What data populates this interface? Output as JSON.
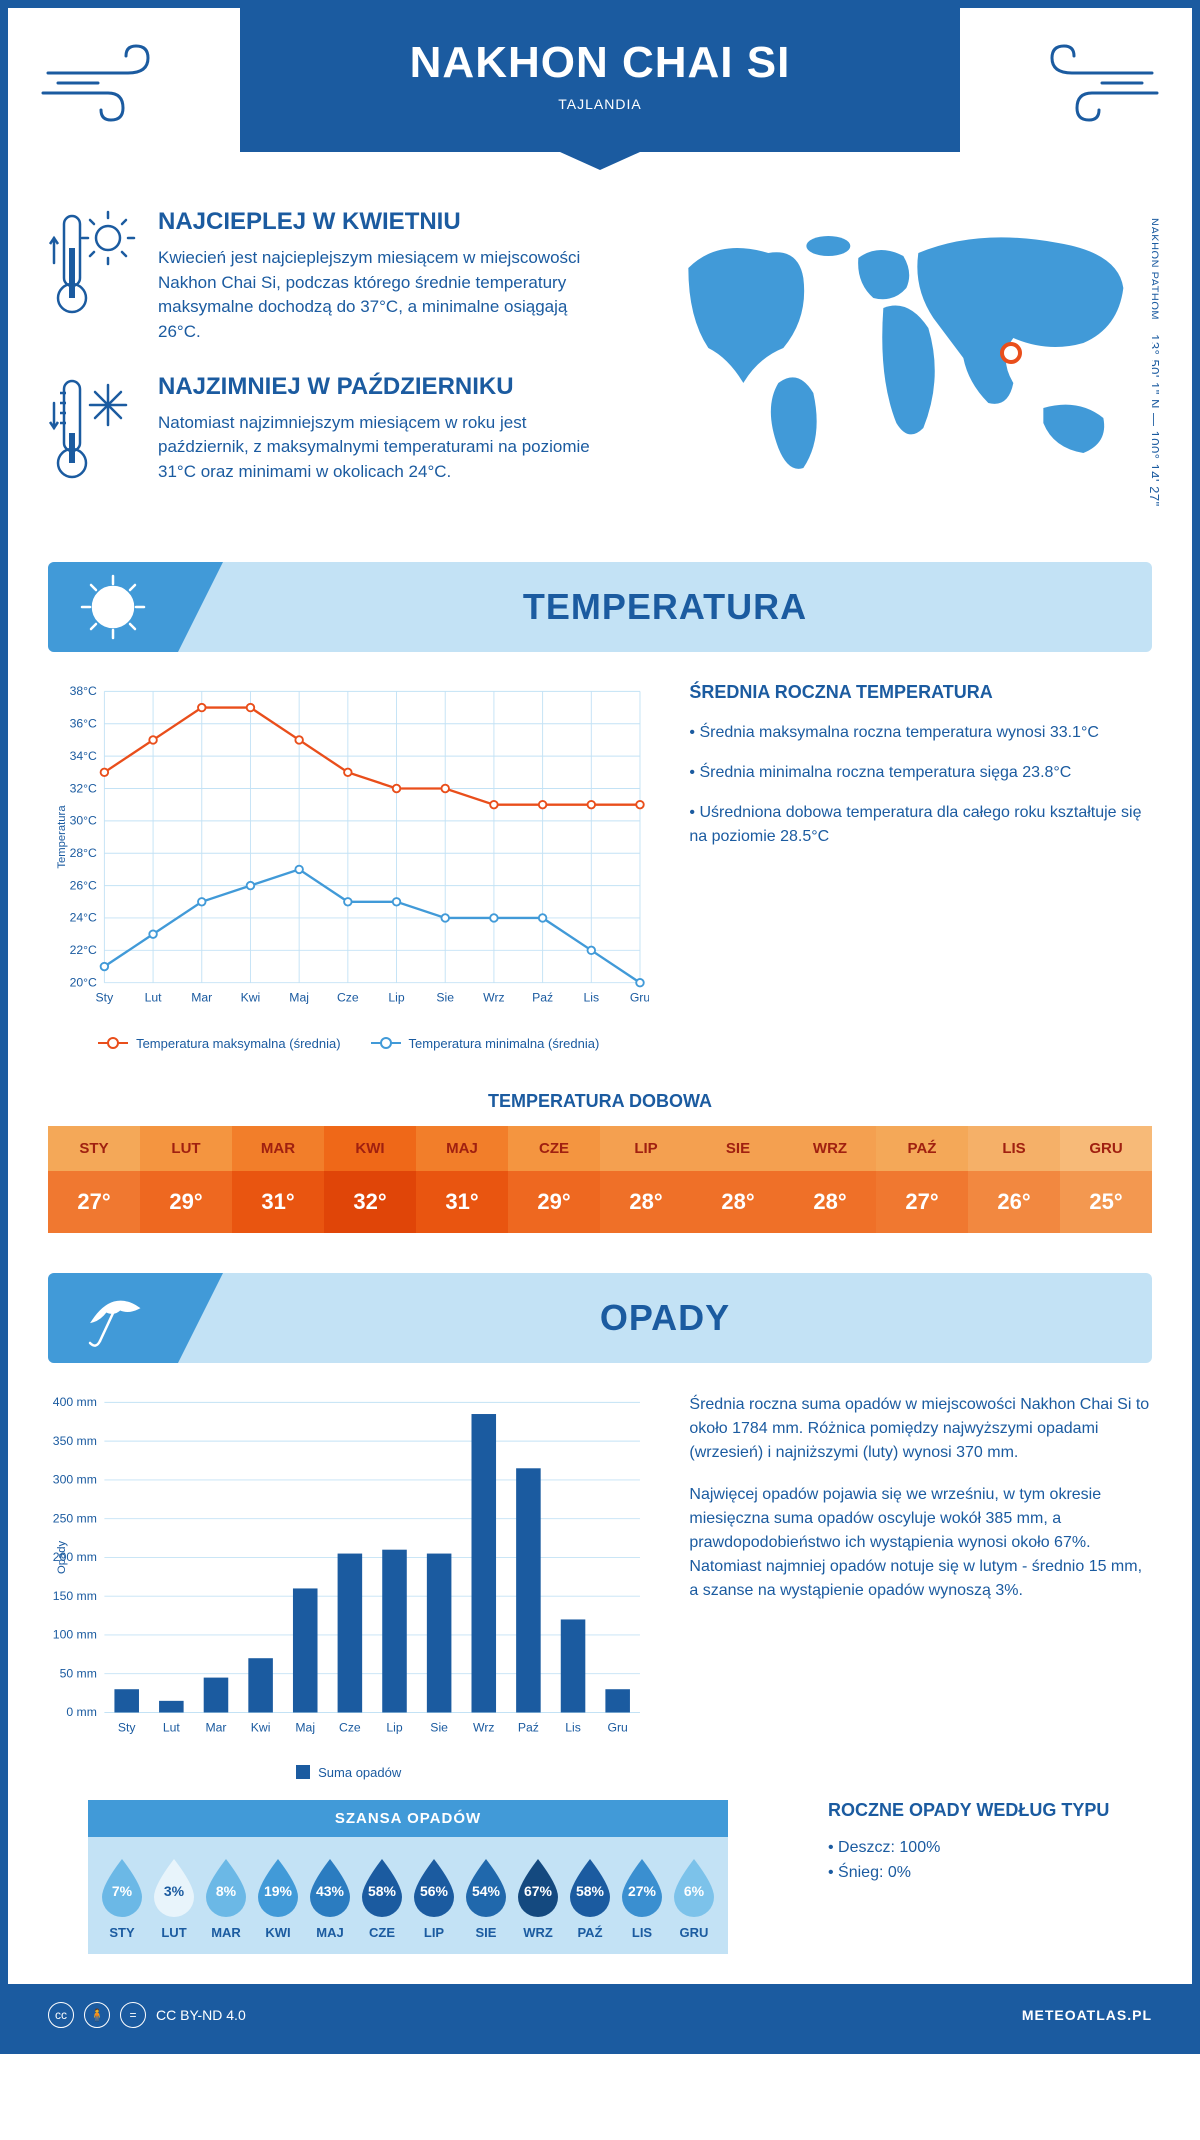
{
  "header": {
    "title": "NAKHON CHAI SI",
    "subtitle": "TAJLANDIA"
  },
  "intro": {
    "warm": {
      "title": "NAJCIEPLEJ W KWIETNIU",
      "text": "Kwiecień jest najcieplejszym miesiącem w miejscowości Nakhon Chai Si, podczas którego średnie temperatury maksymalne dochodzą do 37°C, a minimalne osiągają 26°C."
    },
    "cold": {
      "title": "NAJZIMNIEJ W PAŹDZIERNIKU",
      "text": "Natomiast najzimniejszym miesiącem w roku jest październik, z maksymalnymi temperaturami na poziomie 31°C oraz minimami w okolicach 24°C."
    },
    "coords": "13° 50' 1\" N — 100° 14' 27\" E",
    "region": "NAKHON PATHOM",
    "marker_pos": {
      "left_pct": 70,
      "top_pct": 48
    }
  },
  "months": [
    "Sty",
    "Lut",
    "Mar",
    "Kwi",
    "Maj",
    "Cze",
    "Lip",
    "Sie",
    "Wrz",
    "Paź",
    "Lis",
    "Gru"
  ],
  "months_upper": [
    "STY",
    "LUT",
    "MAR",
    "KWI",
    "MAJ",
    "CZE",
    "LIP",
    "SIE",
    "WRZ",
    "PAŹ",
    "LIS",
    "GRU"
  ],
  "temperature": {
    "section_title": "TEMPERATURA",
    "ylabel": "Temperatura",
    "ylim": [
      20,
      38
    ],
    "ytick_step": 2,
    "y_suffix": "°C",
    "max_series": {
      "label": "Temperatura maksymalna (średnia)",
      "color": "#e94e1b",
      "values": [
        33,
        35,
        37,
        37,
        35,
        33,
        32,
        32,
        31,
        31,
        31,
        31
      ]
    },
    "min_series": {
      "label": "Temperatura minimalna (średnia)",
      "color": "#419ad8",
      "values": [
        21,
        23,
        25,
        26,
        27,
        25,
        25,
        24,
        24,
        24,
        22,
        20
      ]
    },
    "side_title": "ŚREDNIA ROCZNA TEMPERATURA",
    "side_bullets": [
      "• Średnia maksymalna roczna temperatura wynosi 33.1°C",
      "• Średnia minimalna roczna temperatura sięga 23.8°C",
      "• Uśredniona dobowa temperatura dla całego roku kształtuje się na poziomie 28.5°C"
    ],
    "daily_title": "TEMPERATURA DOBOWA",
    "daily_values": [
      "27°",
      "29°",
      "31°",
      "32°",
      "31°",
      "29°",
      "28°",
      "28°",
      "28°",
      "27°",
      "26°",
      "25°"
    ],
    "daily_header_colors": [
      "#f4a858",
      "#f49540",
      "#f27e2a",
      "#ef6818",
      "#f27e2a",
      "#f49540",
      "#f4a050",
      "#f4a050",
      "#f4a050",
      "#f4a858",
      "#f5b068",
      "#f7ba78"
    ],
    "daily_value_colors": [
      "#f07830",
      "#ee6820",
      "#e95510",
      "#e04508",
      "#e95510",
      "#ee6820",
      "#ef7028",
      "#ef7028",
      "#ef7028",
      "#f07830",
      "#f28840",
      "#f39850"
    ]
  },
  "precip": {
    "section_title": "OPADY",
    "ylabel": "Opady",
    "ylim": [
      0,
      400
    ],
    "yticks": [
      0,
      50,
      100,
      150,
      200,
      250,
      300,
      350,
      400
    ],
    "y_suffix": " mm",
    "bar_color": "#1b5ba0",
    "values": [
      30,
      15,
      45,
      70,
      160,
      205,
      210,
      205,
      385,
      315,
      120,
      30
    ],
    "legend_label": "Suma opadów",
    "text1": "Średnia roczna suma opadów w miejscowości Nakhon Chai Si to około 1784 mm. Różnica pomiędzy najwyższymi opadami (wrzesień) i najniższymi (luty) wynosi 370 mm.",
    "text2": "Najwięcej opadów pojawia się we wrześniu, w tym okresie miesięczna suma opadów oscyluje wokół 385 mm, a prawdopodobieństwo ich wystąpienia wynosi około 67%. Natomiast najmniej opadów notuje się w lutym - średnio 15 mm, a szanse na wystąpienie opadów wynoszą 3%.",
    "chance_title": "SZANSA OPADÓW",
    "chance_pct": [
      7,
      3,
      8,
      19,
      43,
      58,
      56,
      54,
      67,
      58,
      27,
      6
    ],
    "chance_colors": [
      "#6bb8e6",
      "#e8f4fb",
      "#6bb8e6",
      "#419ad8",
      "#2b7cc0",
      "#1b5ba0",
      "#1b5ba0",
      "#2068ac",
      "#14497f",
      "#1b5ba0",
      "#3a8fd0",
      "#7cc2ea"
    ],
    "chance_text_colors": [
      "#fff",
      "#1b5ba0",
      "#fff",
      "#fff",
      "#fff",
      "#fff",
      "#fff",
      "#fff",
      "#fff",
      "#fff",
      "#fff",
      "#fff"
    ],
    "type_title": "ROCZNE OPADY WEDŁUG TYPU",
    "type_bullets": [
      "• Deszcz: 100%",
      "• Śnieg: 0%"
    ]
  },
  "footer": {
    "license": "CC BY-ND 4.0",
    "site": "METEOATLAS.PL"
  }
}
